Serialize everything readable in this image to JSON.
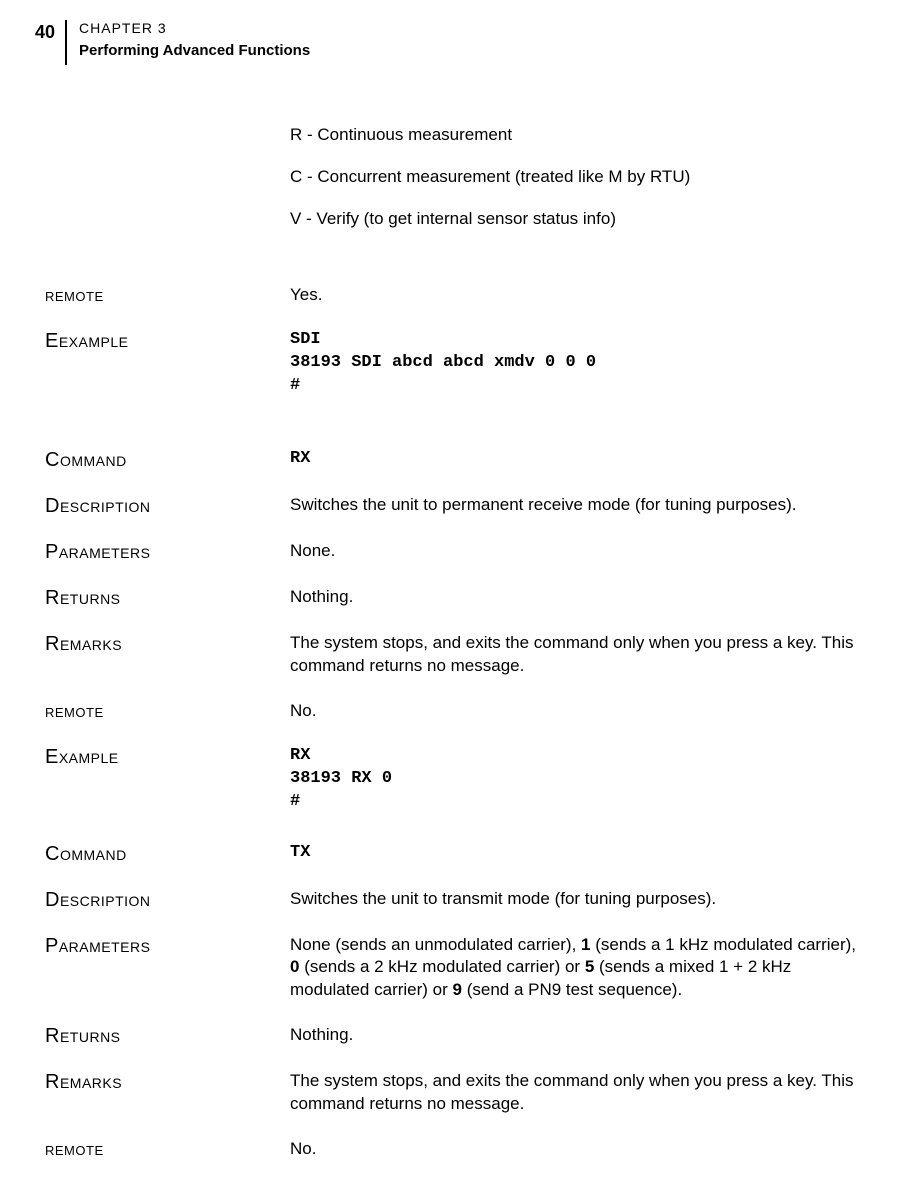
{
  "header": {
    "page_number": "40",
    "chapter_label": "CHAPTER 3",
    "chapter_title": "Performing Advanced Functions"
  },
  "intro": {
    "line1": "R - Continuous measurement",
    "line2": "C - Concurrent measurement (treated like M by RTU)",
    "line3": "V - Verify (to get internal sensor status info)"
  },
  "sdi": {
    "remote_label": "REMOTE",
    "remote_value": "Yes.",
    "example_label": "EXAMPLE",
    "example_value": "SDI\n38193 SDI abcd abcd xmdv 0 0 0\n#"
  },
  "rx": {
    "command_label": "COMMAND",
    "command_value": "RX",
    "description_label": "DESCRIPTION",
    "description_value": "Switches the unit to permanent receive mode (for tuning pur­poses).",
    "parameters_label": "PARAMETERS",
    "parameters_value": "None.",
    "returns_label": "RETURNS",
    "returns_value": "Nothing.",
    "remarks_label": "REMARKS",
    "remarks_value": "The system stops, and exits the command only when you press a key. This command returns no message.",
    "remote_label": "REMOTE",
    "remote_value": "No.",
    "example_label": "EXAMPLE",
    "example_value": "RX\n38193 RX 0\n#"
  },
  "tx": {
    "command_label": "COMMAND",
    "command_value": "TX",
    "description_label": "DESCRIPTION",
    "description_value": "Switches the unit to transmit mode (for tuning purposes).",
    "parameters_label": "PARAMETERS",
    "parameters_pre": "None (sends an unmodulated carrier), ",
    "parameters_b1": "1",
    "parameters_mid1": " (sends a 1 kHz modulated carrier), ",
    "parameters_b0": "0",
    "parameters_mid2": " (sends a 2 kHz modulated carrier) or ",
    "parameters_b5": "5",
    "parameters_mid3": " (sends a mixed 1 + 2 kHz modulated carrier) or ",
    "parameters_b9": "9",
    "parameters_post": " (send a PN9 test sequence).",
    "returns_label": "RETURNS",
    "returns_value": "Nothing.",
    "remarks_label": "REMARKS",
    "remarks_value": "The system stops, and exits the command only when you press a key. This command returns no message.",
    "remote_label": "REMOTE",
    "remote_value": "No."
  }
}
